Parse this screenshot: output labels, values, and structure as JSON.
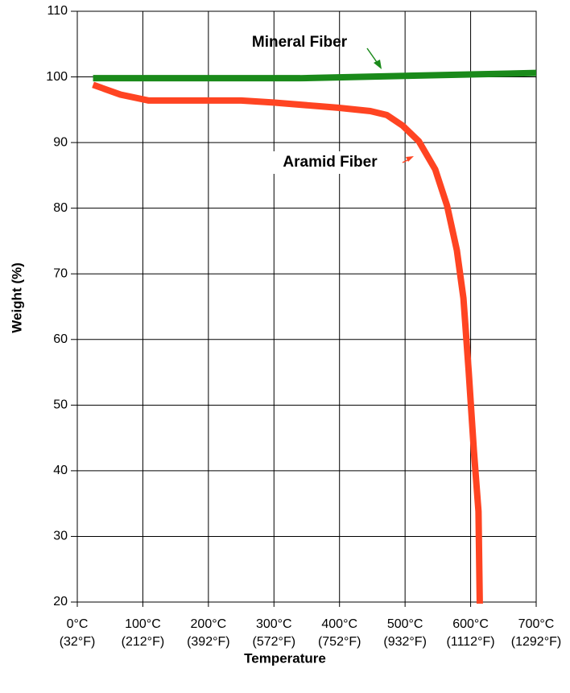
{
  "chart_data": {
    "type": "line",
    "xlabel": "Temperature",
    "ylabel": "Weight (%)",
    "xlim": [
      0,
      700
    ],
    "ylim": [
      20,
      110
    ],
    "xticks": [
      {
        "value": 0,
        "label": "0°C\n(32°F)"
      },
      {
        "value": 100,
        "label": "100°C\n(212°F)"
      },
      {
        "value": 200,
        "label": "200°C\n(392°F)"
      },
      {
        "value": 300,
        "label": "300°C\n(572°F)"
      },
      {
        "value": 400,
        "label": "400°C\n(752°F)"
      },
      {
        "value": 500,
        "label": "500°C\n(932°F)"
      },
      {
        "value": 600,
        "label": "600°C\n(1112°F)"
      },
      {
        "value": 700,
        "label": "700°C\n(1292°F)"
      }
    ],
    "yticks": [
      20,
      30,
      40,
      50,
      60,
      70,
      80,
      90,
      100,
      110
    ],
    "grid": true,
    "series": [
      {
        "name": "Mineral Fiber",
        "color": "#1a8a1a",
        "x": [
          24,
          340,
          700
        ],
        "values": [
          99.8,
          99.8,
          100.6
        ]
      },
      {
        "name": "Aramid Fiber",
        "color": "#ff4422",
        "x": [
          24,
          66,
          109,
          250,
          299,
          398,
          447,
          472,
          496,
          521,
          546,
          564,
          579,
          589,
          597,
          605,
          612,
          614
        ],
        "values": [
          98.8,
          97.3,
          96.4,
          96.4,
          96.1,
          95.3,
          94.8,
          94.2,
          92.6,
          90.2,
          85.9,
          80.4,
          73.6,
          66.3,
          55.2,
          43,
          33.8,
          19.3
        ]
      }
    ]
  }
}
